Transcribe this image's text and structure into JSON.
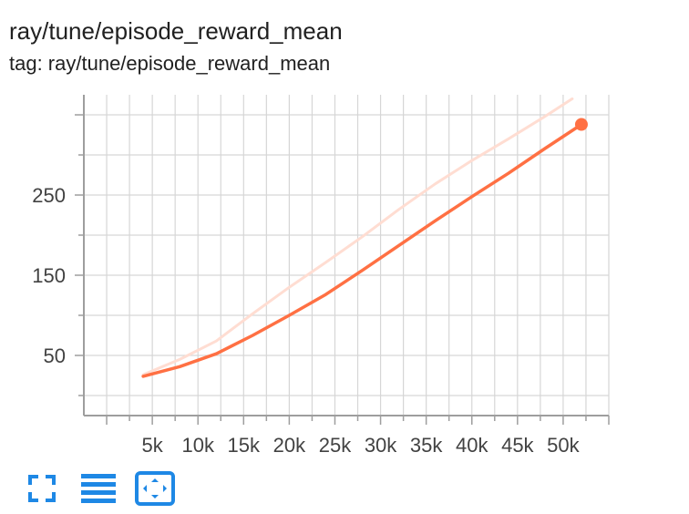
{
  "card": {
    "title": "ray/tune/episode_reward_mean",
    "tag_text": "tag: ray/tune/episode_reward_mean"
  },
  "colors": {
    "series_smoothed": "#ff7043",
    "series_raw": "#ffddd2",
    "grid": "#d6d6d6",
    "axis": "#9e9e9e",
    "toolbar_icon": "#1e88e5"
  },
  "toolbar": {
    "buttons": [
      {
        "name": "fullscreen-toggle-button",
        "icon": "fullscreen-icon"
      },
      {
        "name": "toggle-log-scale-button",
        "icon": "list-icon"
      },
      {
        "name": "fit-domain-button",
        "icon": "fit-to-data-icon"
      }
    ]
  },
  "chart_data": {
    "type": "line",
    "title": "ray/tune/episode_reward_mean",
    "xlabel": "",
    "ylabel": "",
    "xlim": [
      -2500,
      55000
    ],
    "ylim": [
      -25,
      375
    ],
    "x_ticks": [
      5000,
      10000,
      15000,
      20000,
      25000,
      30000,
      35000,
      40000,
      45000,
      50000
    ],
    "x_tick_labels": [
      "5k",
      "10k",
      "15k",
      "20k",
      "25k",
      "30k",
      "35k",
      "40k",
      "45k",
      "50k"
    ],
    "y_ticks": [
      50,
      150,
      250
    ],
    "y_tick_labels": [
      "50",
      "150",
      "250"
    ],
    "grid": true,
    "series": [
      {
        "style": "raw",
        "x": [
          4000,
          8000,
          12000,
          16000,
          20000,
          24000,
          28000,
          32000,
          36000,
          40000,
          44000,
          48000,
          51000
        ],
        "y": [
          26,
          45,
          68,
          102,
          135,
          166,
          198,
          232,
          264,
          293,
          320,
          348,
          370
        ]
      },
      {
        "style": "smoothed",
        "x": [
          4000,
          8000,
          12000,
          16000,
          20000,
          24000,
          28000,
          32000,
          36000,
          40000,
          44000,
          48000,
          52000
        ],
        "y": [
          24,
          36,
          52,
          75,
          100,
          126,
          156,
          187,
          218,
          248,
          277,
          308,
          338
        ],
        "last_point_marker": true
      }
    ]
  }
}
